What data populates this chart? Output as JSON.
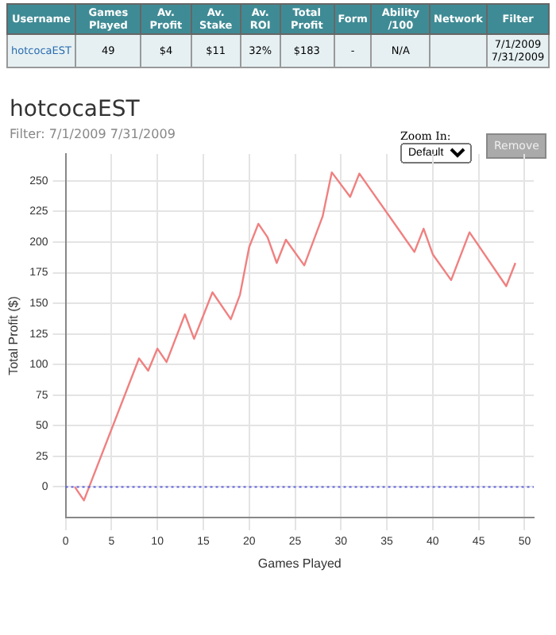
{
  "chart_data": {
    "type": "line",
    "title": "hotcocaEST",
    "subtitle": "Filter: 7/1/2009 7/31/2009",
    "xlabel": "Games Played",
    "ylabel": "Total Profit ($)",
    "annotations": [
      "Username",
      "Games Played",
      "Av. Profit",
      "Av. Stake",
      "Av. ROI",
      "Total Profit",
      "Form",
      "Ability /100",
      "Network",
      "Filter",
      "hotcocaEST",
      "49",
      "$4",
      "$11",
      "32%",
      "$183",
      "-",
      "N/A",
      "7/1/2009 7/31/2009",
      "Zoom In:",
      "Default",
      "Remove"
    ],
    "series": [
      {
        "color": "#f08080",
        "x": [
          1,
          2,
          8,
          9,
          10,
          11,
          13,
          14,
          16,
          18,
          19,
          20,
          21,
          22,
          23,
          24,
          26,
          28,
          29,
          31,
          32,
          38,
          39,
          40,
          42,
          44,
          48,
          49
        ],
        "values": [
          0,
          -11,
          105,
          95,
          113,
          102,
          141,
          121,
          159,
          137,
          157,
          196,
          215,
          204,
          183,
          202,
          181,
          221,
          257,
          237,
          256,
          192,
          211,
          190,
          169,
          208,
          164,
          183
        ]
      }
    ],
    "xlim": [
      0,
      51
    ],
    "xticks": [
      0,
      5,
      10,
      15,
      20,
      25,
      30,
      35,
      40,
      45,
      50
    ],
    "ylim": [
      -25,
      272
    ],
    "yticks": [
      0,
      25,
      50,
      75,
      100,
      125,
      150,
      175,
      200,
      225,
      250
    ],
    "ref_lines": [
      {
        "axis": "y",
        "value": 0,
        "color": "#6060e0",
        "line_style": "dotted"
      }
    ],
    "grid": true,
    "legend": false,
    "marker": "none",
    "line_style": "solid"
  }
}
